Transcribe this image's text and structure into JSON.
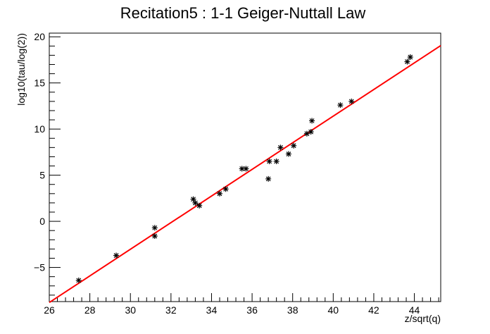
{
  "chart_data": {
    "type": "scatter",
    "title": "Recitation5 : 1-1 Geiger-Nuttall Law",
    "xlabel": "z/sqrt(q)",
    "ylabel": "log10(tau/log(2))",
    "xlim": [
      26,
      45.3
    ],
    "ylim": [
      -8.7,
      20.4
    ],
    "x_ticks": [
      26,
      28,
      30,
      32,
      34,
      36,
      38,
      40,
      42,
      44
    ],
    "y_ticks": [
      -5,
      0,
      5,
      10,
      15,
      20
    ],
    "y_tick_labels": [
      "−5",
      "0",
      "5",
      "10",
      "15",
      "20"
    ],
    "grid": false,
    "marker": "star",
    "marker_color": "#000000",
    "fit_color": "#ff0000",
    "points": [
      {
        "x": 27.45,
        "y": -6.4
      },
      {
        "x": 29.3,
        "y": -3.7
      },
      {
        "x": 31.2,
        "y": -0.7
      },
      {
        "x": 31.2,
        "y": -1.6
      },
      {
        "x": 33.1,
        "y": 2.4
      },
      {
        "x": 33.2,
        "y": 2.0
      },
      {
        "x": 33.4,
        "y": 1.7
      },
      {
        "x": 34.4,
        "y": 3.0
      },
      {
        "x": 34.7,
        "y": 3.5
      },
      {
        "x": 35.5,
        "y": 5.7
      },
      {
        "x": 35.7,
        "y": 5.7
      },
      {
        "x": 36.8,
        "y": 4.6
      },
      {
        "x": 36.85,
        "y": 6.5
      },
      {
        "x": 37.2,
        "y": 6.5
      },
      {
        "x": 37.4,
        "y": 8.0
      },
      {
        "x": 37.8,
        "y": 7.3
      },
      {
        "x": 38.05,
        "y": 8.2
      },
      {
        "x": 38.7,
        "y": 9.5
      },
      {
        "x": 38.9,
        "y": 9.7
      },
      {
        "x": 38.95,
        "y": 10.9
      },
      {
        "x": 40.35,
        "y": 12.6
      },
      {
        "x": 40.9,
        "y": 13.0
      },
      {
        "x": 43.65,
        "y": 17.3
      },
      {
        "x": 43.8,
        "y": 17.8
      }
    ],
    "fit_line": {
      "x": [
        26,
        45.3
      ],
      "y": [
        -8.8,
        19.05
      ]
    }
  }
}
